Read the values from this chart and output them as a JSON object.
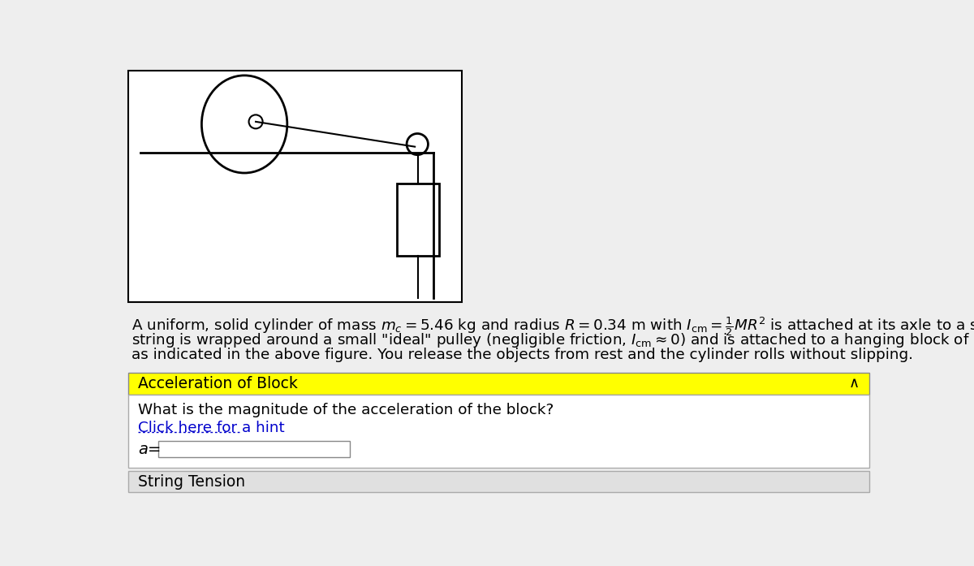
{
  "bg_color": "#eeeeee",
  "diagram_bg": "#ffffff",
  "diagram_border": "#000000",
  "yellow_bar_text": "Acceleration of Block",
  "yellow_color": "#ffff00",
  "question_text": "What is the magnitude of the acceleration of the block?",
  "hint_text": "Click here for a hint",
  "hint_color": "#0000cc",
  "input_label": "a=",
  "bottom_bar_text": "String Tension",
  "bottom_bar_bg": "#e0e0e0",
  "caret": "∧"
}
